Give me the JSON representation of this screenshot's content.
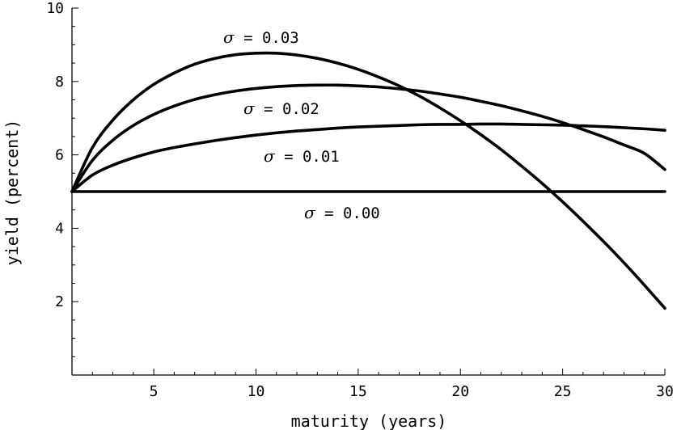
{
  "chart_data": {
    "type": "line",
    "title": "",
    "xlabel": "maturity (years)",
    "ylabel": "yield (percent)",
    "xlim": [
      1,
      30
    ],
    "ylim": [
      0,
      10
    ],
    "x_ticks": [
      5,
      10,
      15,
      20,
      25,
      30
    ],
    "y_ticks": [
      2,
      4,
      6,
      8,
      10
    ],
    "grid": false,
    "legend": "none",
    "line_color": "#000000",
    "x": [
      1,
      2,
      3,
      4,
      5,
      6,
      7,
      8,
      9,
      10,
      11,
      12,
      13,
      14,
      15,
      16,
      17,
      18,
      19,
      20,
      21,
      22,
      23,
      24,
      25,
      26,
      27,
      28,
      29,
      30
    ],
    "series": [
      {
        "label_symbol": "σ",
        "label_text": " = 0.03",
        "values": [
          5.0,
          6.2,
          6.95,
          7.5,
          7.92,
          8.23,
          8.47,
          8.63,
          8.73,
          8.77,
          8.77,
          8.72,
          8.63,
          8.5,
          8.33,
          8.12,
          7.88,
          7.6,
          7.28,
          6.93,
          6.55,
          6.14,
          5.69,
          5.22,
          4.72,
          4.19,
          3.64,
          3.06,
          2.45,
          1.82
        ]
      },
      {
        "label_symbol": "σ",
        "label_text": " = 0.02",
        "values": [
          5.0,
          5.85,
          6.4,
          6.8,
          7.1,
          7.33,
          7.51,
          7.64,
          7.74,
          7.81,
          7.86,
          7.89,
          7.9,
          7.9,
          7.88,
          7.85,
          7.8,
          7.74,
          7.66,
          7.57,
          7.46,
          7.34,
          7.2,
          7.05,
          6.88,
          6.69,
          6.49,
          6.27,
          6.04,
          5.6
        ]
      },
      {
        "label_symbol": "σ",
        "label_text": " = 0.01",
        "values": [
          5.0,
          5.45,
          5.72,
          5.92,
          6.08,
          6.2,
          6.3,
          6.39,
          6.47,
          6.54,
          6.6,
          6.65,
          6.69,
          6.73,
          6.76,
          6.78,
          6.8,
          6.82,
          6.83,
          6.83,
          6.84,
          6.84,
          6.83,
          6.82,
          6.81,
          6.79,
          6.77,
          6.74,
          6.71,
          6.67
        ]
      },
      {
        "label_symbol": "σ",
        "label_text": " = 0.00",
        "values": [
          5.0,
          5.0,
          5.0,
          5.0,
          5.0,
          5.0,
          5.0,
          5.0,
          5.0,
          5.0,
          5.0,
          5.0,
          5.0,
          5.0,
          5.0,
          5.0,
          5.0,
          5.0,
          5.0,
          5.0,
          5.0,
          5.0,
          5.0,
          5.0,
          5.0,
          5.0,
          5.0,
          5.0,
          5.0,
          5.0
        ]
      }
    ]
  }
}
